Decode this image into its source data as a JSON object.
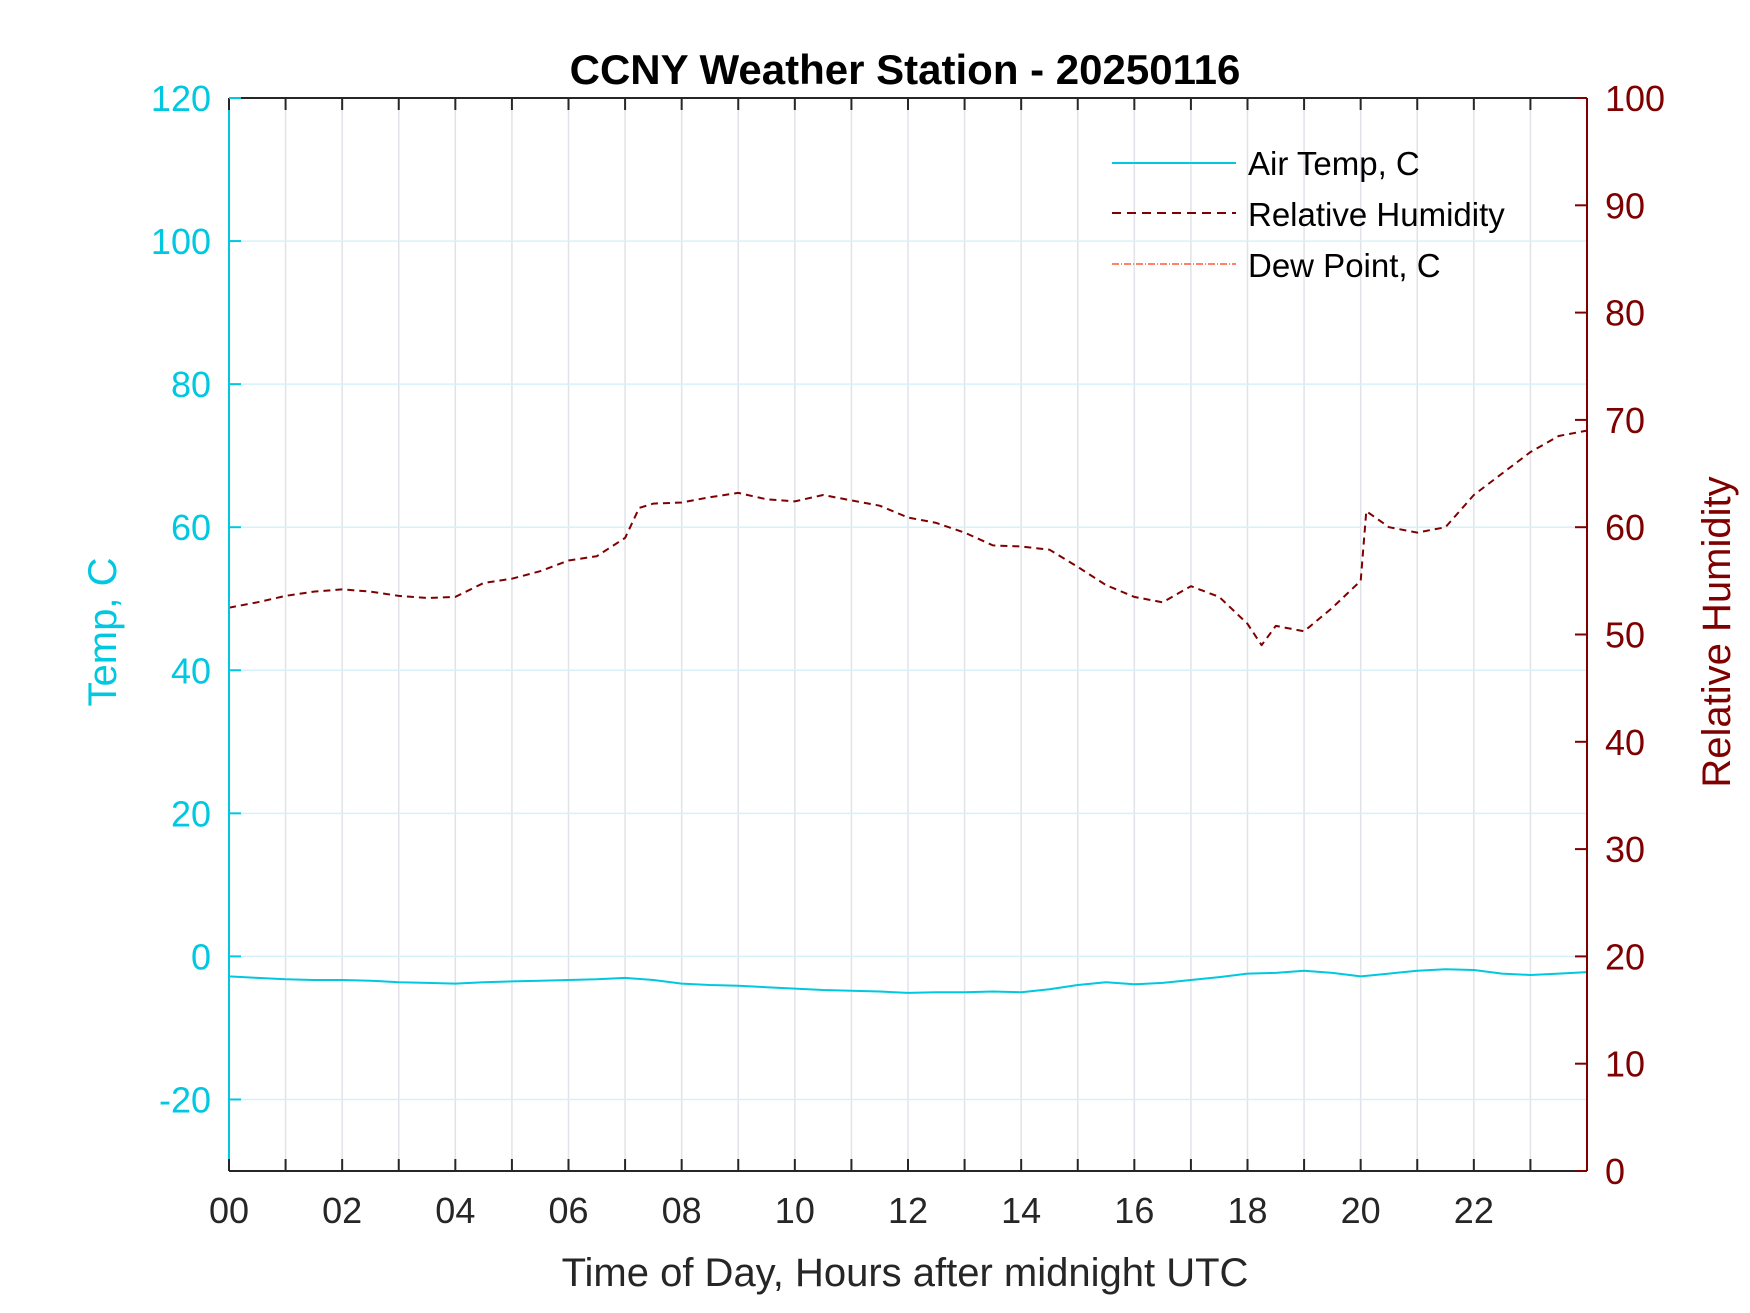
{
  "chart_data": {
    "type": "line",
    "title": "CCNY Weather Station - 20250116",
    "xlabel": "Time of Day, Hours after midnight UTC",
    "ylabel_left": "Temp, C",
    "ylabel_right": "Relative Humidity",
    "xlim": [
      0,
      24
    ],
    "ylim_left": [
      -30,
      120
    ],
    "ylim_right": [
      0,
      100
    ],
    "x_ticks": [
      0,
      2,
      4,
      6,
      8,
      10,
      12,
      14,
      16,
      18,
      20,
      22
    ],
    "x_tick_labels": [
      "00",
      "02",
      "04",
      "06",
      "08",
      "10",
      "12",
      "14",
      "16",
      "18",
      "20",
      "22"
    ],
    "y_left_ticks": [
      -20,
      0,
      20,
      40,
      60,
      80,
      100,
      120
    ],
    "y_left_tick_labels": [
      "-20",
      "0",
      "20",
      "40",
      "60",
      "80",
      "100",
      "120"
    ],
    "y_right_ticks": [
      0,
      10,
      20,
      30,
      40,
      50,
      60,
      70,
      80,
      90,
      100
    ],
    "y_right_tick_labels": [
      "0",
      "10",
      "20",
      "30",
      "40",
      "50",
      "60",
      "70",
      "80",
      "90",
      "100"
    ],
    "grid": true,
    "legend_position": "top-right",
    "colors": {
      "temp": "#00c8e0",
      "rh": "#7f0000",
      "dew": "#ff5a3c",
      "grid": "#dfe3e8",
      "axis": "#262626"
    },
    "series": [
      {
        "name": "Air Temp, C",
        "axis": "left",
        "style": "solid",
        "x": [
          0,
          0.5,
          1,
          1.5,
          2,
          2.5,
          3,
          3.5,
          4,
          4.5,
          5,
          5.5,
          6,
          6.5,
          7,
          7.5,
          8,
          8.5,
          9,
          9.5,
          10,
          10.5,
          11,
          11.5,
          12,
          12.5,
          13,
          13.5,
          14,
          14.5,
          15,
          15.5,
          16,
          16.5,
          17,
          17.5,
          18,
          18.5,
          19,
          19.5,
          20,
          20.5,
          21,
          21.5,
          22,
          22.5,
          23,
          23.5,
          24
        ],
        "values": [
          -2.8,
          -3.0,
          -3.2,
          -3.3,
          -3.3,
          -3.4,
          -3.6,
          -3.7,
          -3.8,
          -3.6,
          -3.5,
          -3.4,
          -3.3,
          -3.2,
          -3.0,
          -3.3,
          -3.8,
          -4.0,
          -4.1,
          -4.3,
          -4.5,
          -4.7,
          -4.8,
          -4.9,
          -5.1,
          -5.0,
          -5.0,
          -4.9,
          -5.0,
          -4.6,
          -4.0,
          -3.6,
          -3.9,
          -3.7,
          -3.3,
          -2.9,
          -2.4,
          -2.3,
          -2.0,
          -2.3,
          -2.8,
          -2.4,
          -2.0,
          -1.8,
          -1.9,
          -2.4,
          -2.6,
          -2.4,
          -2.2
        ]
      },
      {
        "name": "Relative Humidity",
        "axis": "right",
        "style": "dashed",
        "x": [
          0,
          0.5,
          1,
          1.5,
          2,
          2.5,
          3,
          3.5,
          4,
          4.5,
          5,
          5.5,
          6,
          6.5,
          7,
          7.25,
          7.5,
          8,
          8.5,
          9,
          9.5,
          10,
          10.5,
          11,
          11.5,
          12,
          12.5,
          13,
          13.5,
          14,
          14.5,
          15,
          15.5,
          16,
          16.5,
          17,
          17.5,
          18,
          18.25,
          18.5,
          19,
          19.5,
          20,
          20.1,
          20.5,
          21,
          21.5,
          22,
          22.5,
          23,
          23.5,
          24
        ],
        "values": [
          52.5,
          53.0,
          53.6,
          54.0,
          54.2,
          54.0,
          53.6,
          53.4,
          53.5,
          54.8,
          55.2,
          55.9,
          56.9,
          57.3,
          59.0,
          61.8,
          62.2,
          62.3,
          62.8,
          63.2,
          62.6,
          62.4,
          63.0,
          62.5,
          62.0,
          60.9,
          60.4,
          59.5,
          58.3,
          58.2,
          57.9,
          56.3,
          54.6,
          53.5,
          53.0,
          54.5,
          53.5,
          51.0,
          49.0,
          50.8,
          50.3,
          52.5,
          55.0,
          61.5,
          60.0,
          59.5,
          60.0,
          63.0,
          65.0,
          67.0,
          68.5,
          69.0
        ]
      },
      {
        "name": "Dew Point, C",
        "axis": "left",
        "style": "dashdot",
        "x": [],
        "values": []
      }
    ]
  }
}
